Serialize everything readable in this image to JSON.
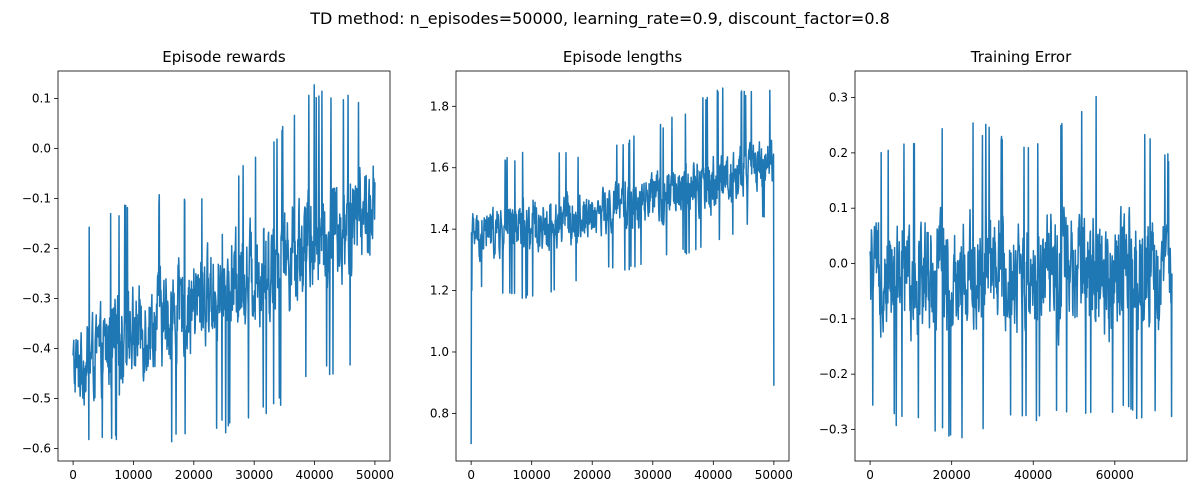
{
  "figure": {
    "suptitle": "TD method: n_episodes=50000, learning_rate=0.9, discount_factor=0.8"
  },
  "colors": {
    "line": "#1f77b4",
    "axes": "#000000",
    "background": "#ffffff"
  },
  "chart_data": [
    {
      "type": "line",
      "title": "Episode rewards",
      "xlabel": "",
      "ylabel": "",
      "xlim": [
        -2500,
        52500
      ],
      "ylim": [
        -0.625,
        0.155
      ],
      "xticks": [
        0,
        10000,
        20000,
        30000,
        40000,
        50000
      ],
      "yticks": [
        -0.6,
        -0.5,
        -0.4,
        -0.3,
        -0.2,
        -0.1,
        0.0,
        0.1
      ],
      "ytick_labels": [
        "−0.6",
        "−0.5",
        "−0.4",
        "−0.3",
        "−0.2",
        "−0.1",
        "0.0",
        "0.1"
      ],
      "grid": false,
      "legend": "none",
      "x": [
        0,
        10000,
        20000,
        30000,
        40000,
        50000
      ],
      "series": [
        {
          "trend_mean": [
            -0.44,
            -0.37,
            -0.31,
            -0.25,
            -0.18,
            -0.12
          ]
        },
        {
          "upper_envelope": [
            -0.18,
            -0.09,
            -0.09,
            -0.02,
            0.13,
            0.11
          ]
        },
        {
          "lower_envelope": [
            -0.58,
            -0.59,
            -0.59,
            -0.55,
            -0.47,
            -0.42
          ]
        }
      ]
    },
    {
      "type": "line",
      "title": "Episode lengths",
      "xlabel": "",
      "ylabel": "",
      "xlim": [
        -2500,
        52500
      ],
      "ylim": [
        0.645,
        1.915
      ],
      "xticks": [
        0,
        10000,
        20000,
        30000,
        40000,
        50000
      ],
      "yticks": [
        0.8,
        1.0,
        1.2,
        1.4,
        1.6,
        1.8
      ],
      "ytick_labels": [
        "0.8",
        "1.0",
        "1.2",
        "1.4",
        "1.6",
        "1.8"
      ],
      "grid": false,
      "legend": "none",
      "x": [
        0,
        10000,
        20000,
        30000,
        40000,
        50000
      ],
      "series": [
        {
          "trend_mean": [
            1.38,
            1.41,
            1.45,
            1.49,
            1.55,
            1.62
          ]
        },
        {
          "upper_envelope": [
            1.61,
            1.66,
            1.65,
            1.73,
            1.86,
            1.86
          ]
        },
        {
          "lower_envelope": [
            1.2,
            1.17,
            1.25,
            1.28,
            1.35,
            1.45
          ]
        },
        {
          "first_value": 0.7,
          "last_value": 0.89
        }
      ]
    },
    {
      "type": "line",
      "title": "Training Error",
      "xlabel": "",
      "ylabel": "",
      "xlim": [
        -3700,
        77700
      ],
      "ylim": [
        -0.357,
        0.348
      ],
      "xticks": [
        0,
        20000,
        40000,
        60000
      ],
      "yticks": [
        -0.3,
        -0.2,
        -0.1,
        0.0,
        0.1,
        0.2,
        0.3
      ],
      "ytick_labels": [
        "−0.3",
        "−0.2",
        "−0.1",
        "0.0",
        "0.1",
        "0.2",
        "0.3"
      ],
      "grid": false,
      "legend": "none",
      "x": [
        0,
        20000,
        40000,
        60000,
        74000
      ],
      "series": [
        {
          "trend_mean": [
            -0.02,
            -0.02,
            -0.02,
            -0.02,
            -0.02
          ]
        },
        {
          "upper_envelope": [
            0.2,
            0.27,
            0.23,
            0.33,
            0.19
          ]
        },
        {
          "lower_envelope": [
            -0.28,
            -0.32,
            -0.29,
            -0.27,
            -0.3
          ]
        }
      ]
    }
  ]
}
